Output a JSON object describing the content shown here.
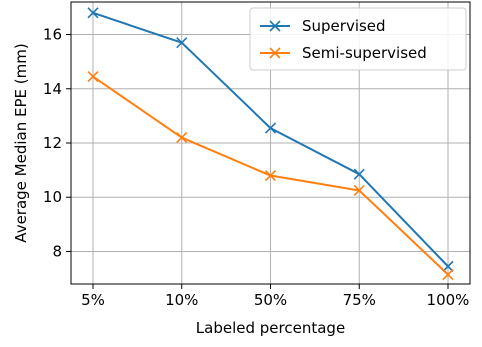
{
  "chart_data": {
    "type": "line",
    "title": "",
    "xlabel": "Labeled percentage",
    "ylabel": "Average Median EPE (mm)",
    "categories": [
      "5%",
      "10%",
      "50%",
      "75%",
      "100%"
    ],
    "ylim": [
      6.8,
      17.2
    ],
    "yticks": [
      8,
      10,
      12,
      14,
      16
    ],
    "grid": true,
    "legend_position": "top-right",
    "marker": "x",
    "series": [
      {
        "name": "Supervised",
        "color": "#1f77b4",
        "values": [
          16.8,
          15.7,
          12.55,
          10.85,
          7.45
        ]
      },
      {
        "name": "Semi-supervised",
        "color": "#ff7f0e",
        "values": [
          14.45,
          12.2,
          10.8,
          10.25,
          7.15
        ]
      }
    ]
  }
}
